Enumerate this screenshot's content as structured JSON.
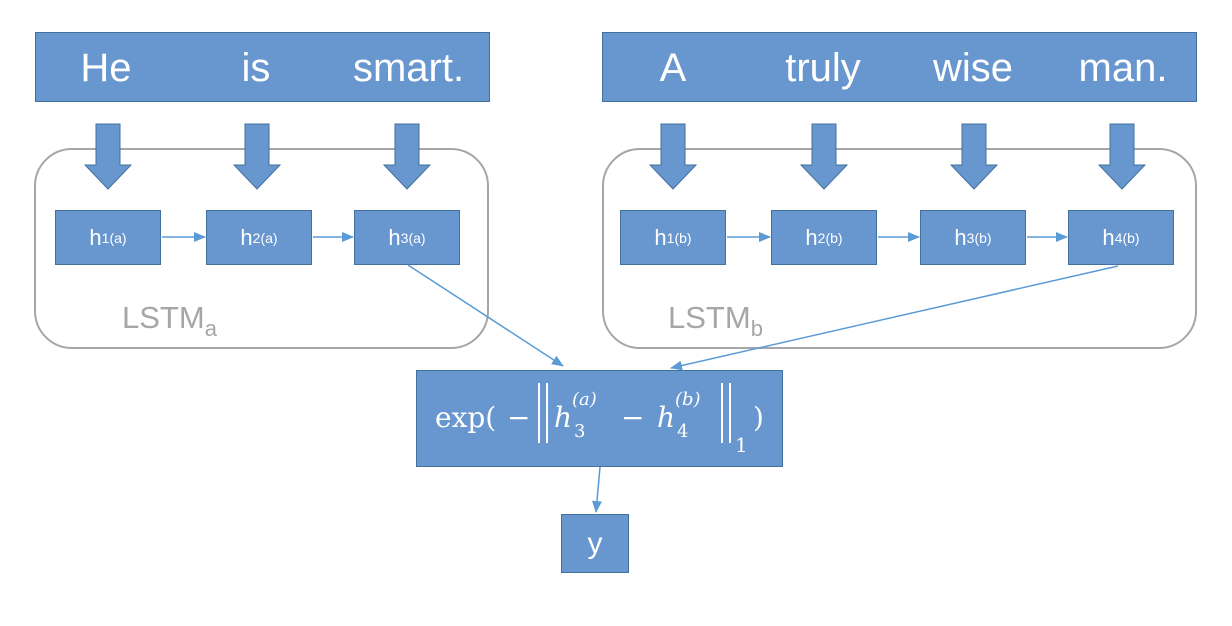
{
  "sentence_a": {
    "words": [
      "He",
      "is",
      "smart."
    ]
  },
  "sentence_b": {
    "words": [
      "A",
      "truly",
      "wise",
      "man."
    ]
  },
  "lstm_a": {
    "label_main": "LSTM",
    "label_sub": "a",
    "cells": [
      {
        "base": "h",
        "index": "1",
        "sup": "(a)"
      },
      {
        "base": "h",
        "index": "2",
        "sup": "(a)"
      },
      {
        "base": "h",
        "index": "3",
        "sup": "(a)"
      }
    ]
  },
  "lstm_b": {
    "label_main": "LSTM",
    "label_sub": "b",
    "cells": [
      {
        "base": "h",
        "index": "1",
        "sup": "(b)"
      },
      {
        "base": "h",
        "index": "2",
        "sup": "(b)"
      },
      {
        "base": "h",
        "index": "3",
        "sup": "(b)"
      },
      {
        "base": "h",
        "index": "4",
        "sup": "(b)"
      }
    ]
  },
  "similarity": {
    "func": "exp(",
    "minus": "−",
    "ha": "h",
    "ha_sub": "3",
    "ha_sup": "(a)",
    "op": "−",
    "hb": "h",
    "hb_sub": "4",
    "hb_sup": "(b)",
    "norm_sub": "1",
    "close": ")"
  },
  "output": {
    "label": "y"
  },
  "colors": {
    "box_fill": "#6896cf",
    "box_border": "#41719c",
    "group_border": "#a6a6a6",
    "connector": "#5b9bd5"
  }
}
